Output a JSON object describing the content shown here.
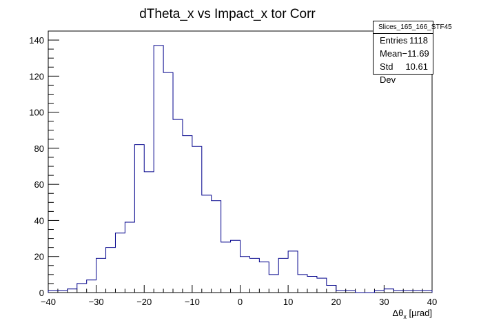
{
  "chart_data": {
    "type": "bar",
    "style": "step-histogram",
    "title": "dTheta_x vs Impact_x tor Corr",
    "xlabel": "Δθx [µrad]",
    "xlabel_parts": {
      "main": "Δθ",
      "sub": "x",
      "unit": " [µrad]"
    },
    "ylabel": "",
    "xlim": [
      -40,
      40
    ],
    "ylim": [
      0,
      145
    ],
    "x_ticks": [
      -40,
      -30,
      -20,
      -10,
      0,
      10,
      20,
      30,
      40
    ],
    "x_tick_labels": [
      "−40",
      "−30",
      "−20",
      "−10",
      "0",
      "10",
      "20",
      "30",
      "40"
    ],
    "y_ticks": [
      0,
      20,
      40,
      60,
      80,
      100,
      120,
      140
    ],
    "y_tick_labels": [
      "0",
      "20",
      "40",
      "60",
      "80",
      "100",
      "120",
      "140"
    ],
    "bin_edges": [
      -40,
      -38,
      -36,
      -34,
      -32,
      -30,
      -28,
      -26,
      -24,
      -22,
      -20,
      -18,
      -16,
      -14,
      -12,
      -10,
      -8,
      -6,
      -4,
      -2,
      0,
      2,
      4,
      6,
      8,
      10,
      12,
      14,
      16,
      18,
      20,
      22,
      24,
      26,
      28,
      30,
      32,
      34,
      36,
      38,
      40
    ],
    "values": [
      1,
      1,
      2,
      5,
      7,
      19,
      25,
      33,
      39,
      82,
      67,
      137,
      122,
      96,
      87,
      81,
      54,
      51,
      28,
      29,
      20,
      19,
      17,
      10,
      19,
      23,
      10,
      9,
      8,
      4,
      1,
      1,
      0,
      0,
      1,
      2,
      1,
      1,
      1,
      1
    ],
    "line_color": "#00008b",
    "grid": false,
    "legend": "none",
    "stats": {
      "name": "Slices_165_166_STF45",
      "rows": [
        {
          "label": "Entries",
          "value": "1118"
        },
        {
          "label": "Mean",
          "value": "−11.69"
        },
        {
          "label": "Std Dev",
          "value": "10.61"
        }
      ],
      "placement": "top-right"
    }
  }
}
